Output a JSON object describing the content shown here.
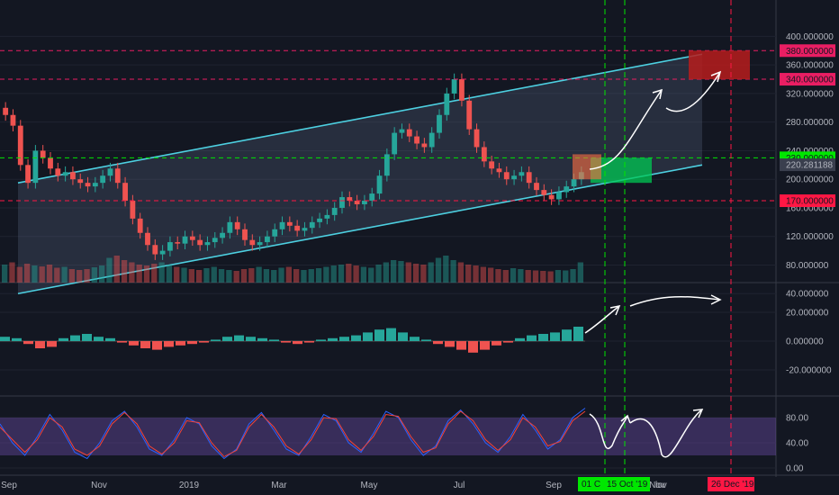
{
  "chart_data": [
    {
      "type": "candlestick",
      "panel": "price",
      "x_ticks": [
        "Sep",
        "Nov",
        "2019",
        "Mar",
        "May",
        "Jul",
        "Sep",
        "Nov"
      ],
      "y_ticks": [
        "40.000000",
        "80.000000",
        "120.000000",
        "160.000000",
        "200.000000",
        "240.000000",
        "280.000000",
        "320.000000",
        "360.000000",
        "400.000000"
      ],
      "ylim": [
        40,
        400
      ],
      "close": [
        290,
        275,
        220,
        195,
        240,
        230,
        215,
        205,
        210,
        200,
        195,
        190,
        195,
        205,
        215,
        195,
        170,
        145,
        125,
        108,
        95,
        100,
        112,
        110,
        120,
        115,
        108,
        112,
        118,
        125,
        140,
        130,
        115,
        108,
        112,
        120,
        130,
        140,
        135,
        128,
        132,
        140,
        145,
        150,
        160,
        175,
        170,
        165,
        170,
        180,
        205,
        235,
        265,
        270,
        260,
        250,
        245,
        265,
        290,
        320,
        340,
        310,
        270,
        245,
        225,
        215,
        210,
        200,
        205,
        210,
        195,
        185,
        178,
        172,
        182,
        190,
        200,
        210
      ],
      "volume": [
        40,
        45,
        35,
        42,
        38,
        36,
        40,
        33,
        35,
        30,
        28,
        30,
        34,
        38,
        55,
        60,
        50,
        45,
        40,
        38,
        42,
        45,
        40,
        35,
        33,
        30,
        28,
        32,
        35,
        30,
        28,
        26,
        30,
        32,
        35,
        30,
        28,
        33,
        35,
        30,
        28,
        30,
        32,
        35,
        38,
        40,
        42,
        38,
        35,
        33,
        40,
        45,
        50,
        48,
        45,
        42,
        40,
        45,
        55,
        60,
        50,
        45,
        40,
        38,
        35,
        33,
        30,
        28,
        32,
        30,
        28,
        27,
        26,
        25,
        28,
        27,
        30,
        45
      ],
      "levels": [
        {
          "label": "380.000000",
          "value": 380,
          "color": "#e91e63"
        },
        {
          "label": "340.000000",
          "value": 340,
          "color": "#e91e63"
        },
        {
          "label": "230.000000",
          "value": 230,
          "color": "#00e600"
        },
        {
          "label": "170.000000",
          "value": 170,
          "color": "#ff1744"
        }
      ],
      "current_price": {
        "label": "220.281188",
        "value": 220.281188
      },
      "channel": {
        "lower_start": 40,
        "lower_end": 220,
        "upper_start": 195,
        "upper_end": 375
      },
      "target_box": {
        "low": 340,
        "high": 380
      },
      "buy_box": {
        "low": 195,
        "high": 230
      }
    },
    {
      "type": "histogram",
      "panel": "macd",
      "y_ticks": [
        "20.000000",
        "0.000000",
        "-20.000000"
      ],
      "ylim": [
        -35,
        35
      ],
      "values": [
        3,
        2,
        -2,
        -5,
        -4,
        2,
        4,
        5,
        3,
        2,
        -1,
        -3,
        -5,
        -6,
        -4,
        -3,
        -2,
        -1,
        1,
        3,
        4,
        3,
        2,
        1,
        -1,
        -2,
        -1,
        1,
        2,
        3,
        4,
        6,
        8,
        9,
        6,
        3,
        1,
        -2,
        -4,
        -6,
        -8,
        -6,
        -3,
        -1,
        2,
        4,
        5,
        6,
        8,
        10
      ]
    },
    {
      "type": "line",
      "panel": "stochastic",
      "y_ticks": [
        "80.00",
        "40.00",
        "0.00"
      ],
      "ylim": [
        -5,
        105
      ],
      "series": [
        {
          "values": [
            70,
            40,
            20,
            50,
            85,
            60,
            25,
            15,
            40,
            75,
            90,
            65,
            30,
            20,
            45,
            80,
            70,
            35,
            15,
            30,
            70,
            88,
            60,
            30,
            20,
            50,
            85,
            75,
            40,
            25,
            55,
            90,
            80,
            45,
            20,
            35,
            75,
            92,
            70,
            40,
            25,
            50,
            85,
            60,
            30,
            45,
            80,
            95
          ],
          "color": "#2962ff"
        },
        {
          "values": [
            65,
            45,
            25,
            45,
            80,
            65,
            30,
            20,
            35,
            70,
            88,
            70,
            35,
            22,
            40,
            75,
            72,
            40,
            18,
            28,
            65,
            85,
            65,
            35,
            22,
            45,
            80,
            78,
            45,
            28,
            50,
            85,
            82,
            50,
            25,
            32,
            70,
            90,
            75,
            45,
            28,
            45,
            80,
            65,
            35,
            42,
            75,
            90
          ],
          "color": "#f44336"
        }
      ]
    }
  ],
  "date_tags": [
    {
      "label": "01 C",
      "color": "#00e600"
    },
    {
      "label": "15 Oct '19",
      "color": "#00e600"
    },
    {
      "label": "26 Dec '19",
      "color": "#ff1744"
    }
  ],
  "axis_tail_label": "lov"
}
